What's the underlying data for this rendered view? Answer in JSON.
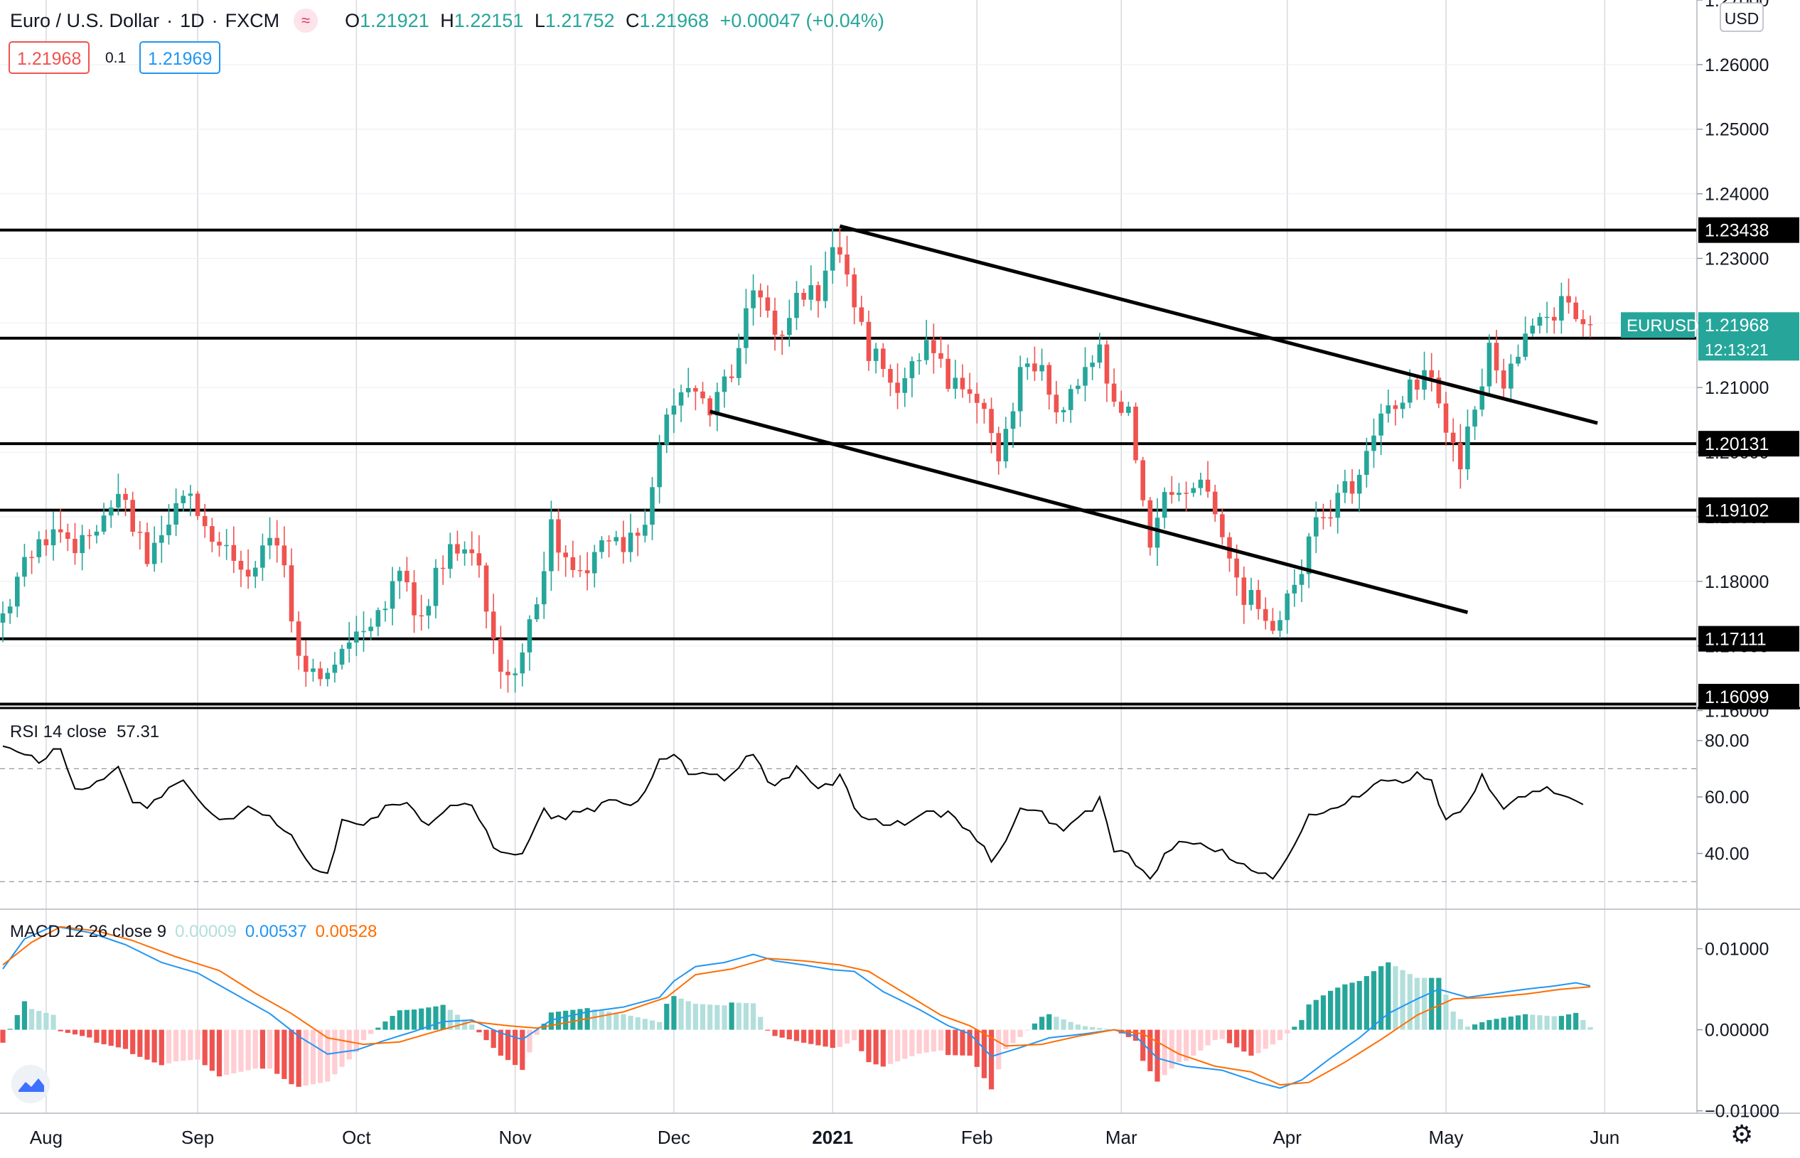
{
  "header": {
    "symbol": "Euro / U.S. Dollar",
    "interval": "1D",
    "exchange": "FXCM",
    "sep1": "·",
    "sep2": "·",
    "logo_glyph": "≈",
    "open_label": "O",
    "open": "1.21921",
    "high_label": "H",
    "high": "1.22151",
    "low_label": "L",
    "low": "1.21752",
    "close_label": "C",
    "close": "1.21968",
    "change": "+0.00047 (+0.04%)",
    "sell_price": "1.21968",
    "spread": "0.1",
    "buy_price": "1.21969"
  },
  "colors": {
    "up": "#26a69a",
    "down": "#ef5350",
    "grid": "#d7d9de",
    "axis": "#131722",
    "ma_line": "#2196f3",
    "signal_line": "#ff6d00",
    "current_price_bg": "#26a69a"
  },
  "price_axis": {
    "currency": "USD",
    "tick_labels": [
      "1.27000",
      "1.26000",
      "1.25000",
      "1.24000",
      "1.23000",
      "1.22000",
      "1.21000",
      "1.20000",
      "1.19000",
      "1.18000",
      "1.17000",
      "1.16000"
    ],
    "ticks": [
      1.27,
      1.26,
      1.25,
      1.24,
      1.23,
      1.22,
      1.21,
      1.2,
      1.19,
      1.18,
      1.17,
      1.16
    ],
    "current_symbol": "EURUSD",
    "current_price": "1.21968",
    "countdown": "12:13:21"
  },
  "time_axis": {
    "labels": [
      "Aug",
      "Sep",
      "Oct",
      "Nov",
      "Dec",
      "2021",
      "Feb",
      "Mar",
      "Apr",
      "May",
      "Jun"
    ],
    "label_bars": [
      6,
      27,
      49,
      71,
      93,
      115,
      135,
      155,
      178,
      200,
      222
    ]
  },
  "chart_data": [
    {
      "type": "candlestick",
      "title": "Euro / U.S. Dollar · 1D · FXCM",
      "ylim": [
        1.1605,
        1.27
      ],
      "bar_count": 221,
      "seed_price": 1.1721,
      "start_open": 1.1736,
      "anchors": [
        [
          0,
          1.1735
        ],
        [
          5,
          1.188
        ],
        [
          10,
          1.185
        ],
        [
          16,
          1.1935
        ],
        [
          20,
          1.184
        ],
        [
          26,
          1.1935
        ],
        [
          28,
          1.188
        ],
        [
          34,
          1.1825
        ],
        [
          38,
          1.186
        ],
        [
          42,
          1.165
        ],
        [
          45,
          1.164
        ],
        [
          47,
          1.171
        ],
        [
          52,
          1.175
        ],
        [
          55,
          1.1815
        ],
        [
          58,
          1.1735
        ],
        [
          62,
          1.187
        ],
        [
          66,
          1.183
        ],
        [
          69,
          1.165
        ],
        [
          71,
          1.165
        ],
        [
          74,
          1.176
        ],
        [
          76,
          1.188
        ],
        [
          80,
          1.18
        ],
        [
          83,
          1.1855
        ],
        [
          86,
          1.186
        ],
        [
          89,
          1.19
        ],
        [
          91,
          1.2
        ],
        [
          93,
          1.208
        ],
        [
          96,
          1.211
        ],
        [
          98,
          1.207
        ],
        [
          101,
          1.213
        ],
        [
          104,
          1.226
        ],
        [
          107,
          1.218
        ],
        [
          110,
          1.223
        ],
        [
          113,
          1.225
        ],
        [
          115,
          1.232
        ],
        [
          117,
          1.228
        ],
        [
          120,
          1.216
        ],
        [
          124,
          1.211
        ],
        [
          128,
          1.217
        ],
        [
          131,
          1.211
        ],
        [
          134,
          1.208
        ],
        [
          136,
          1.207
        ],
        [
          138,
          1.199
        ],
        [
          141,
          1.212
        ],
        [
          144,
          1.213
        ],
        [
          147,
          1.205
        ],
        [
          150,
          1.2145
        ],
        [
          152,
          1.216
        ],
        [
          154,
          1.208
        ],
        [
          156,
          1.206
        ],
        [
          159,
          1.185
        ],
        [
          161,
          1.195
        ],
        [
          163,
          1.192
        ],
        [
          166,
          1.196
        ],
        [
          168,
          1.189
        ],
        [
          171,
          1.179
        ],
        [
          174,
          1.176
        ],
        [
          176,
          1.173
        ],
        [
          179,
          1.18
        ],
        [
          183,
          1.191
        ],
        [
          185,
          1.192
        ],
        [
          188,
          1.197
        ],
        [
          192,
          1.207
        ],
        [
          195,
          1.21
        ],
        [
          198,
          1.213
        ],
        [
          200,
          1.204
        ],
        [
          202,
          1.199
        ],
        [
          204,
          1.206
        ],
        [
          206,
          1.2165
        ],
        [
          208,
          1.21
        ],
        [
          210,
          1.2165
        ],
        [
          212,
          1.221
        ],
        [
          215,
          1.221
        ],
        [
          217,
          1.225
        ],
        [
          218,
          1.22
        ],
        [
          220,
          1.2197
        ]
      ],
      "horizontal_levels": [
        {
          "price": 1.23438,
          "label": "1.23438"
        },
        {
          "price": 1.21765,
          "label": "1.21765"
        },
        {
          "price": 1.20131,
          "label": "1.20131"
        },
        {
          "price": 1.19102,
          "label": "1.19102"
        },
        {
          "price": 1.17111,
          "label": "1.17111"
        },
        {
          "price": 1.16099,
          "label": "1.16099"
        }
      ],
      "trendlines": [
        {
          "name": "channel-upper",
          "from": [
            116,
            1.235
          ],
          "to": [
            221,
            1.2045
          ]
        },
        {
          "name": "channel-lower",
          "from": [
            98,
            1.2063
          ],
          "to": [
            203,
            1.1752
          ]
        }
      ]
    },
    {
      "type": "line",
      "title": "RSI",
      "legend": "RSI 14 close",
      "last_value": "57.31",
      "ylim": [
        20.5,
        91
      ],
      "tick_labels": [
        "80.00",
        "60.00",
        "40.00"
      ],
      "ticks": [
        80,
        60,
        40
      ],
      "bands": [
        70,
        30
      ],
      "anchors": [
        [
          0,
          78
        ],
        [
          3,
          75
        ],
        [
          5,
          72
        ],
        [
          8,
          77
        ],
        [
          10,
          62
        ],
        [
          13,
          64
        ],
        [
          16,
          71
        ],
        [
          18,
          58
        ],
        [
          20,
          56
        ],
        [
          22,
          62
        ],
        [
          25,
          66
        ],
        [
          28,
          56
        ],
        [
          31,
          50
        ],
        [
          34,
          57
        ],
        [
          37,
          52
        ],
        [
          40,
          46
        ],
        [
          43,
          34
        ],
        [
          45,
          33
        ],
        [
          47,
          52
        ],
        [
          50,
          50
        ],
        [
          53,
          57
        ],
        [
          56,
          58
        ],
        [
          59,
          50
        ],
        [
          62,
          57
        ],
        [
          65,
          57
        ],
        [
          68,
          42
        ],
        [
          70,
          39
        ],
        [
          72,
          40
        ],
        [
          75,
          56
        ],
        [
          78,
          52
        ],
        [
          81,
          56
        ],
        [
          84,
          59
        ],
        [
          87,
          57
        ],
        [
          89,
          62
        ],
        [
          91,
          72
        ],
        [
          93,
          75
        ],
        [
          95,
          68
        ],
        [
          98,
          68
        ],
        [
          101,
          68
        ],
        [
          104,
          75
        ],
        [
          107,
          64
        ],
        [
          110,
          71
        ],
        [
          113,
          63
        ],
        [
          116,
          68
        ],
        [
          119,
          53
        ],
        [
          122,
          50
        ],
        [
          125,
          50
        ],
        [
          128,
          55
        ],
        [
          131,
          55
        ],
        [
          134,
          48
        ],
        [
          137,
          37
        ],
        [
          139,
          44
        ],
        [
          141,
          56
        ],
        [
          144,
          55
        ],
        [
          147,
          48
        ],
        [
          150,
          55
        ],
        [
          152,
          60
        ],
        [
          154,
          42
        ],
        [
          156,
          40
        ],
        [
          159,
          31
        ],
        [
          161,
          40
        ],
        [
          164,
          44
        ],
        [
          167,
          42
        ],
        [
          170,
          38
        ],
        [
          173,
          34
        ],
        [
          176,
          31
        ],
        [
          178,
          38
        ],
        [
          181,
          53
        ],
        [
          184,
          55
        ],
        [
          188,
          60
        ],
        [
          191,
          66
        ],
        [
          194,
          65
        ],
        [
          196,
          67
        ],
        [
          198,
          66
        ],
        [
          200,
          52
        ],
        [
          203,
          58
        ],
        [
          205,
          66
        ],
        [
          208,
          56
        ],
        [
          211,
          62
        ],
        [
          214,
          62
        ],
        [
          217,
          60
        ],
        [
          219,
          57.31
        ]
      ]
    },
    {
      "type": "bar+line",
      "title": "MACD",
      "legend": "MACD 12 26 close 9",
      "histogram_last": "0.00009",
      "macd_last": "0.00537",
      "signal_last": "0.00528",
      "ylim": [
        -0.0103,
        0.0147
      ],
      "tick_labels": [
        "0.01000",
        "0.00000",
        "−0.01000"
      ],
      "ticks": [
        0.01,
        0.0,
        -0.01
      ],
      "macd_anchors": [
        [
          0,
          0.0075
        ],
        [
          3,
          0.0112
        ],
        [
          7,
          0.0128
        ],
        [
          12,
          0.012
        ],
        [
          17,
          0.0105
        ],
        [
          22,
          0.0083
        ],
        [
          27,
          0.007
        ],
        [
          32,
          0.0045
        ],
        [
          37,
          0.002
        ],
        [
          41,
          -0.0008
        ],
        [
          45,
          -0.003
        ],
        [
          49,
          -0.0025
        ],
        [
          53,
          -0.0013
        ],
        [
          57,
          -0.0002
        ],
        [
          61,
          0.001
        ],
        [
          65,
          0.0012
        ],
        [
          69,
          -0.0004
        ],
        [
          72,
          -0.0012
        ],
        [
          76,
          0.0012
        ],
        [
          81,
          0.0022
        ],
        [
          86,
          0.0028
        ],
        [
          91,
          0.004
        ],
        [
          93,
          0.006
        ],
        [
          96,
          0.0078
        ],
        [
          100,
          0.0083
        ],
        [
          104,
          0.0093
        ],
        [
          107,
          0.0085
        ],
        [
          111,
          0.008
        ],
        [
          115,
          0.0074
        ],
        [
          118,
          0.0072
        ],
        [
          122,
          0.0047
        ],
        [
          127,
          0.0025
        ],
        [
          131,
          0.0005
        ],
        [
          134,
          -0.0005
        ],
        [
          137,
          -0.0033
        ],
        [
          141,
          -0.0022
        ],
        [
          145,
          -0.001
        ],
        [
          150,
          -0.0005
        ],
        [
          154,
          0.0
        ],
        [
          157,
          -0.0008
        ],
        [
          160,
          -0.0035
        ],
        [
          164,
          -0.0045
        ],
        [
          169,
          -0.005
        ],
        [
          174,
          -0.0065
        ],
        [
          177,
          -0.0072
        ],
        [
          180,
          -0.0062
        ],
        [
          184,
          -0.0035
        ],
        [
          188,
          -0.001
        ],
        [
          192,
          0.002
        ],
        [
          196,
          0.0038
        ],
        [
          199,
          0.005
        ],
        [
          203,
          0.004
        ],
        [
          207,
          0.0045
        ],
        [
          211,
          0.005
        ],
        [
          215,
          0.0054
        ],
        [
          218,
          0.0058
        ],
        [
          220,
          0.0054
        ]
      ],
      "signal_anchors": [
        [
          0,
          0.008
        ],
        [
          4,
          0.0108
        ],
        [
          8,
          0.0127
        ],
        [
          13,
          0.0122
        ],
        [
          18,
          0.011
        ],
        [
          24,
          0.009
        ],
        [
          30,
          0.0073
        ],
        [
          35,
          0.0045
        ],
        [
          40,
          0.002
        ],
        [
          45,
          -0.001
        ],
        [
          50,
          -0.0018
        ],
        [
          55,
          -0.0015
        ],
        [
          60,
          -0.0002
        ],
        [
          65,
          0.001
        ],
        [
          70,
          0.0005
        ],
        [
          74,
          0.0002
        ],
        [
          80,
          0.0012
        ],
        [
          86,
          0.0022
        ],
        [
          92,
          0.004
        ],
        [
          96,
          0.0068
        ],
        [
          101,
          0.0075
        ],
        [
          106,
          0.0088
        ],
        [
          111,
          0.0085
        ],
        [
          116,
          0.008
        ],
        [
          120,
          0.0072
        ],
        [
          125,
          0.0045
        ],
        [
          130,
          0.0018
        ],
        [
          134,
          0.0005
        ],
        [
          139,
          -0.002
        ],
        [
          144,
          -0.0018
        ],
        [
          149,
          -0.0008
        ],
        [
          154,
          0.0
        ],
        [
          158,
          -0.0005
        ],
        [
          163,
          -0.003
        ],
        [
          168,
          -0.0045
        ],
        [
          173,
          -0.0052
        ],
        [
          177,
          -0.0068
        ],
        [
          181,
          -0.0065
        ],
        [
          186,
          -0.004
        ],
        [
          191,
          -0.0012
        ],
        [
          196,
          0.0018
        ],
        [
          201,
          0.0038
        ],
        [
          206,
          0.004
        ],
        [
          211,
          0.0044
        ],
        [
          216,
          0.005
        ],
        [
          220,
          0.0053
        ]
      ]
    }
  ]
}
